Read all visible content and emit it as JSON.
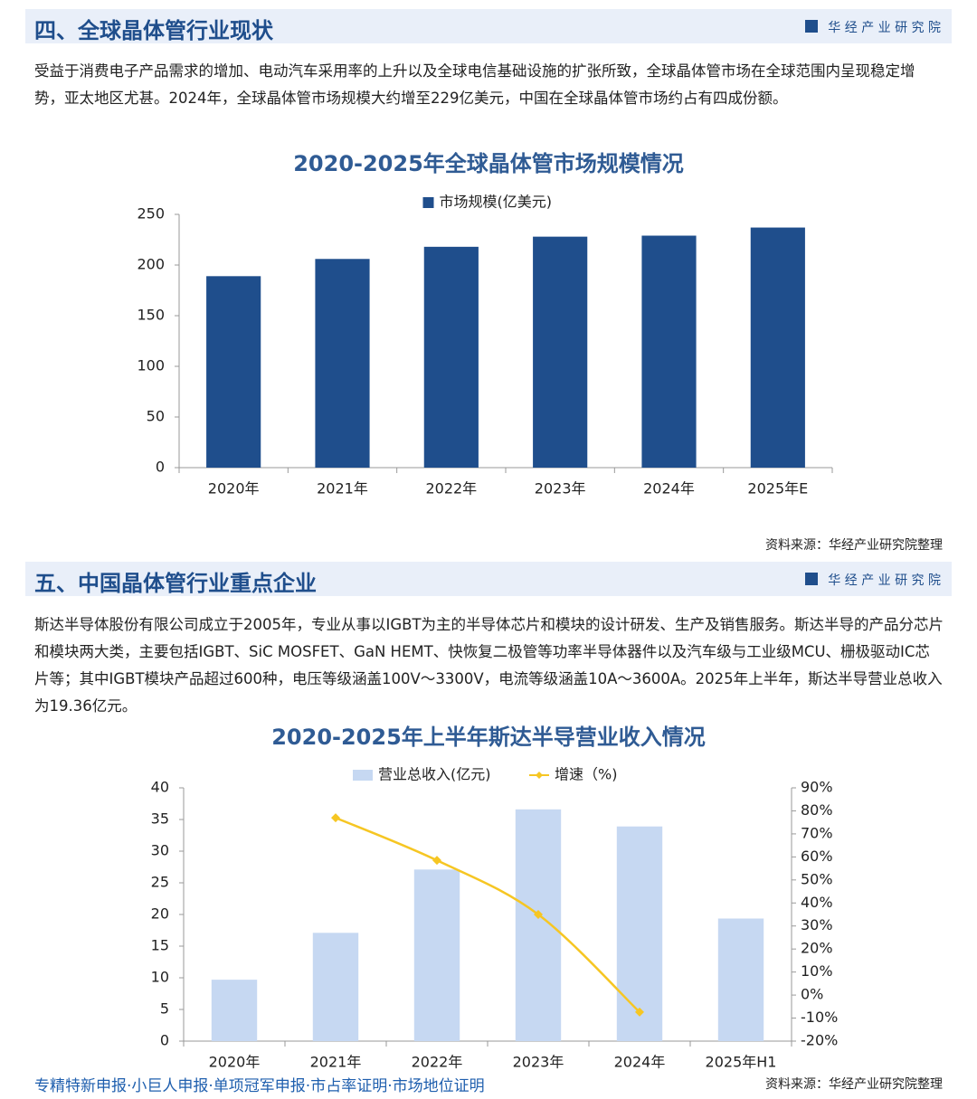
{
  "sections": [
    {
      "title": "四、全球晶体管行业现状",
      "brand": "华 经 产 业 研 究 院",
      "paragraph": "受益于消费电子产品需求的增加、电动汽车采用率的上升以及全球电信基础设施的扩张所致，全球晶体管市场在全球范围内呈现稳定增势，亚太地区尤甚。2024年，全球晶体管市场规模大约增至229亿美元，中国在全球晶体管市场约占有四成份额。"
    },
    {
      "title": "五、中国晶体管行业重点企业",
      "brand": "华 经 产 业 研 究 院",
      "paragraph": "斯达半导体股份有限公司成立于2005年，专业从事以IGBT为主的半导体芯片和模块的设计研发、生产及销售服务。斯达半导的产品分芯片和模块两大类，主要包括IGBT、SiC MOSFET、GaN HEMT、快恢复二极管等功率半导体器件以及汽车级与工业级MCU、栅极驱动IC芯片等；其中IGBT模块产品超过600种，电压等级涵盖100V～3300V，电流等级涵盖10A～3600A。2025年上半年，斯达半导营业总收入为19.36亿元。"
    }
  ],
  "chart_data": [
    {
      "type": "bar",
      "title": "2020-2025年全球晶体管市场规模情况",
      "categories": [
        "2020年",
        "2021年",
        "2022年",
        "2023年",
        "2024年",
        "2025年E"
      ],
      "series": [
        {
          "name": "市场规模(亿美元)",
          "color": "#1f4e8c",
          "values": [
            189,
            206,
            218,
            228,
            229,
            237
          ]
        }
      ],
      "ylim": [
        0,
        250
      ],
      "yticks": [
        0,
        50,
        100,
        150,
        200,
        250
      ],
      "source": "资料来源：华经产业研究院整理"
    },
    {
      "type": "combo",
      "title": "2020-2025年上半年斯达半导营业收入情况",
      "categories": [
        "2020年",
        "2021年",
        "2022年",
        "2023年",
        "2024年",
        "2025年H1"
      ],
      "series": [
        {
          "name": "营业总收入(亿元)",
          "type": "bar",
          "color": "#c6d8f2",
          "values": [
            9.7,
            17.1,
            27.1,
            36.6,
            33.9,
            19.36
          ]
        },
        {
          "name": "增速（%)",
          "type": "line",
          "axis": "y2",
          "color": "#f6c623",
          "values": [
            null,
            77,
            58.5,
            35,
            -7.4,
            null
          ]
        }
      ],
      "ylim": [
        0,
        40
      ],
      "yticks": [
        0,
        5,
        10,
        15,
        20,
        25,
        30,
        35,
        40
      ],
      "y2lim": [
        -20,
        90
      ],
      "y2ticks": [
        {
          "value": -20,
          "label": "-20%"
        },
        {
          "value": -10,
          "label": "-10%"
        },
        {
          "value": 0,
          "label": "0%"
        },
        {
          "value": 10,
          "label": "10%"
        },
        {
          "value": 20,
          "label": "20%"
        },
        {
          "value": 30,
          "label": "30%"
        },
        {
          "value": 40,
          "label": "40%"
        },
        {
          "value": 50,
          "label": "50%"
        },
        {
          "value": 60,
          "label": "60%"
        },
        {
          "value": 70,
          "label": "70%"
        },
        {
          "value": 80,
          "label": "80%"
        },
        {
          "value": 90,
          "label": "90%"
        }
      ],
      "source": "资料来源：华经产业研究院整理"
    }
  ],
  "footer": "专精特新申报·小巨人申报·单项冠军申报·市占率证明·市场地位证明"
}
